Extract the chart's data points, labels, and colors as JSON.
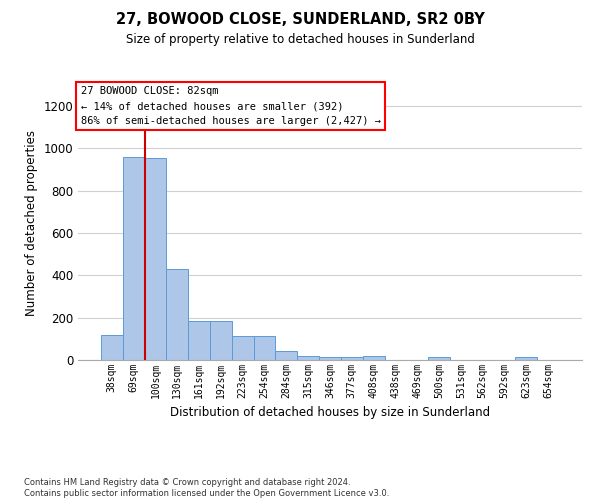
{
  "title1": "27, BOWOOD CLOSE, SUNDERLAND, SR2 0BY",
  "title2": "Size of property relative to detached houses in Sunderland",
  "xlabel": "Distribution of detached houses by size in Sunderland",
  "ylabel": "Number of detached properties",
  "categories": [
    "38sqm",
    "69sqm",
    "100sqm",
    "130sqm",
    "161sqm",
    "192sqm",
    "223sqm",
    "254sqm",
    "284sqm",
    "315sqm",
    "346sqm",
    "377sqm",
    "408sqm",
    "438sqm",
    "469sqm",
    "500sqm",
    "531sqm",
    "562sqm",
    "592sqm",
    "623sqm",
    "654sqm"
  ],
  "values": [
    120,
    960,
    955,
    430,
    185,
    183,
    113,
    112,
    42,
    20,
    14,
    14,
    20,
    0,
    0,
    13,
    0,
    0,
    0,
    14,
    0
  ],
  "bar_color": "#aec6e8",
  "bar_edge_color": "#5b9bd5",
  "vline_x": 1.5,
  "vline_color": "#cc0000",
  "annotation_text": "27 BOWOOD CLOSE: 82sqm\n← 14% of detached houses are smaller (392)\n86% of semi-detached houses are larger (2,427) →",
  "ylim": [
    0,
    1300
  ],
  "yticks": [
    0,
    200,
    400,
    600,
    800,
    1000,
    1200
  ],
  "footer": "Contains HM Land Registry data © Crown copyright and database right 2024.\nContains public sector information licensed under the Open Government Licence v3.0.",
  "bg_color": "#ffffff",
  "grid_color": "#d0d0d0"
}
